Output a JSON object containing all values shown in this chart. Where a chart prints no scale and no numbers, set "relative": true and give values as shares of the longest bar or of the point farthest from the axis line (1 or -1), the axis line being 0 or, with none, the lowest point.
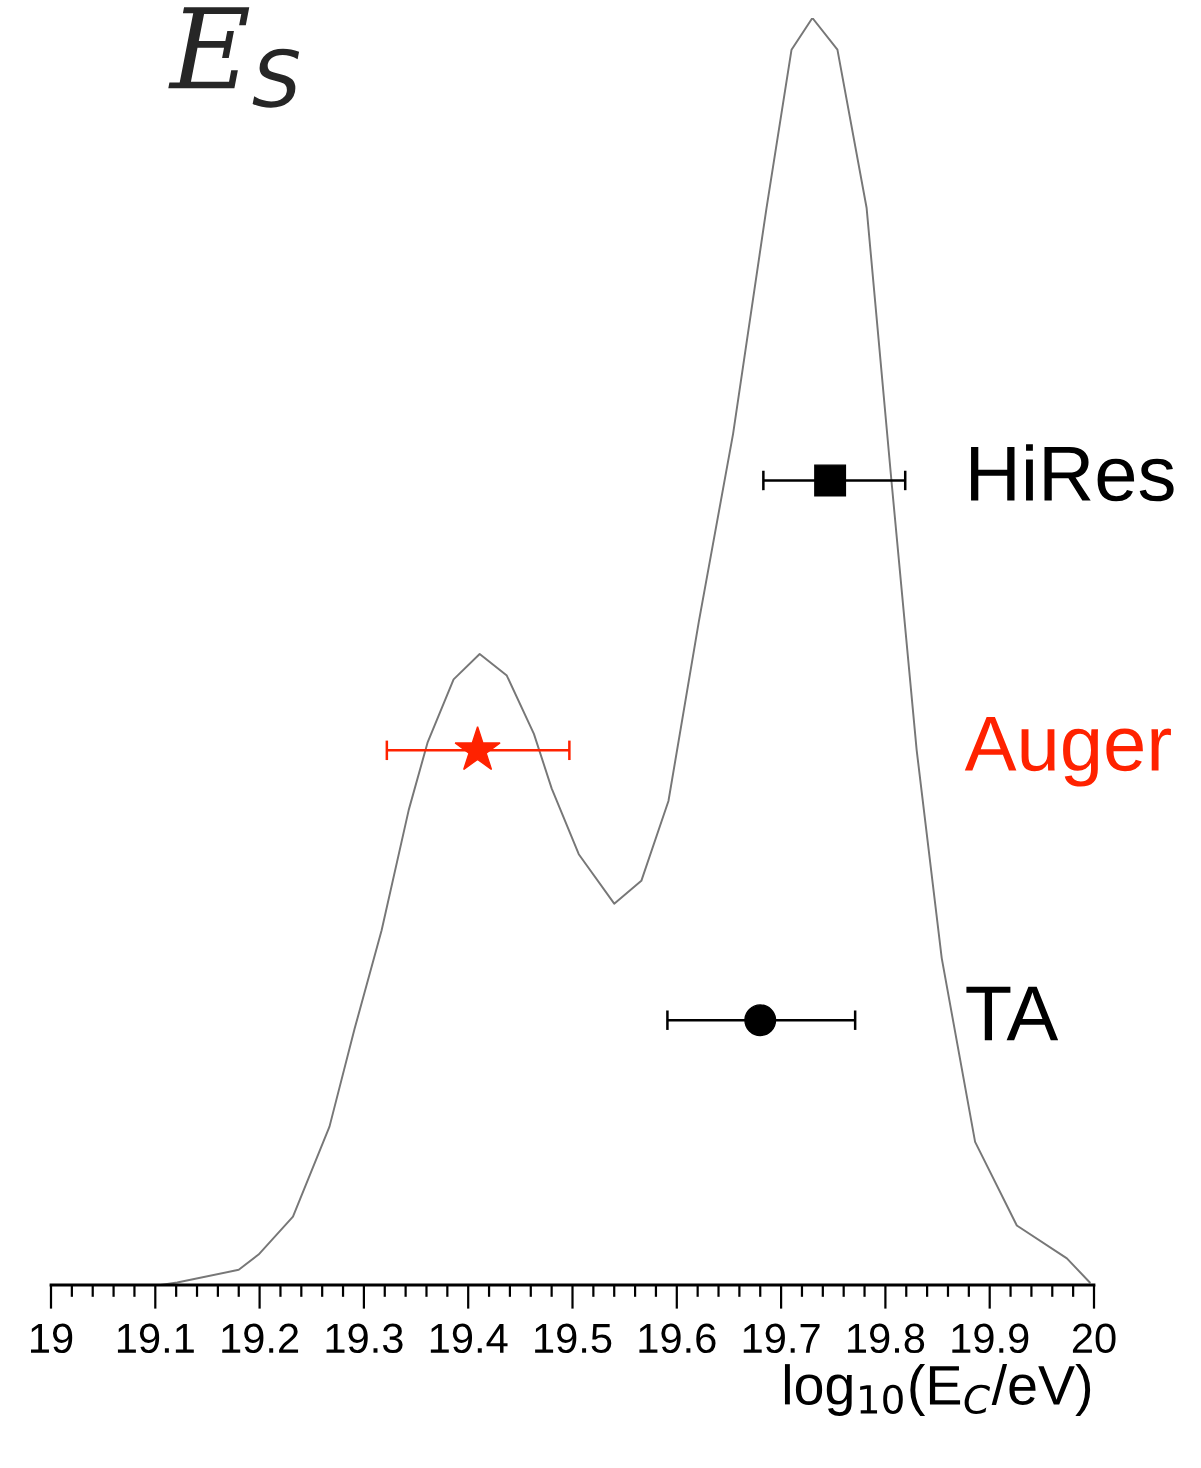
{
  "chart_data": {
    "type": "line",
    "title": "E$_{S}$",
    "xlabel": "log$_{10}$(E$_{C}$/eV)",
    "relative": true,
    "xlim": [
      19,
      20
    ],
    "xticks": [
      19,
      {
        "value": 19.02,
        "label": null
      },
      {
        "value": 19.04,
        "label": null
      },
      {
        "value": 19.06,
        "label": null
      },
      {
        "value": 19.08,
        "label": null
      },
      19.1,
      {
        "value": 19.12,
        "label": null
      },
      {
        "value": 19.14,
        "label": null
      },
      {
        "value": 19.16,
        "label": null
      },
      {
        "value": 19.18,
        "label": null
      },
      19.2,
      {
        "value": 19.22,
        "label": null
      },
      {
        "value": 19.24,
        "label": null
      },
      {
        "value": 19.26,
        "label": null
      },
      {
        "value": 19.28,
        "label": null
      },
      19.3,
      {
        "value": 19.32,
        "label": null
      },
      {
        "value": 19.34,
        "label": null
      },
      {
        "value": 19.36,
        "label": null
      },
      {
        "value": 19.38,
        "label": null
      },
      19.4,
      {
        "value": 19.42,
        "label": null
      },
      {
        "value": 19.44,
        "label": null
      },
      {
        "value": 19.46,
        "label": null
      },
      {
        "value": 19.48,
        "label": null
      },
      19.5,
      {
        "value": 19.52,
        "label": null
      },
      {
        "value": 19.54,
        "label": null
      },
      {
        "value": 19.56,
        "label": null
      },
      {
        "value": 19.58,
        "label": null
      },
      19.6,
      {
        "value": 19.62,
        "label": null
      },
      {
        "value": 19.64,
        "label": null
      },
      {
        "value": 19.66,
        "label": null
      },
      {
        "value": 19.68,
        "label": null
      },
      19.7,
      {
        "value": 19.72,
        "label": null
      },
      {
        "value": 19.74,
        "label": null
      },
      {
        "value": 19.76,
        "label": null
      },
      {
        "value": 19.78,
        "label": null
      },
      19.8,
      {
        "value": 19.82,
        "label": null
      },
      {
        "value": 19.84,
        "label": null
      },
      {
        "value": 19.86,
        "label": null
      },
      {
        "value": 19.88,
        "label": null
      },
      19.9,
      {
        "value": 19.92,
        "label": null
      },
      {
        "value": 19.94,
        "label": null
      },
      {
        "value": 19.96,
        "label": null
      },
      {
        "value": 19.98,
        "label": null
      },
      20
    ],
    "tick_labels": "x",
    "grid": false,
    "legend": false,
    "series": [
      {
        "color": "#777777",
        "marker": "none",
        "line_style": "solid",
        "x": [
          19.105,
          19.121,
          19.18,
          19.199,
          19.232,
          19.267,
          19.291,
          19.317,
          19.343,
          19.361,
          19.386,
          19.411,
          19.437,
          19.463,
          19.48,
          19.506,
          19.54,
          19.566,
          19.592,
          19.621,
          19.654,
          19.686,
          19.71,
          19.73,
          19.754,
          19.782,
          19.806,
          19.83,
          19.854,
          19.886,
          19.926,
          19.974,
          19.996
        ],
        "values": [
          0.0,
          0.002,
          0.012,
          0.024,
          0.054,
          0.125,
          0.202,
          0.28,
          0.375,
          0.428,
          0.478,
          0.498,
          0.481,
          0.435,
          0.392,
          0.34,
          0.301,
          0.319,
          0.382,
          0.523,
          0.672,
          0.85,
          0.975,
          1.0,
          0.975,
          0.85,
          0.633,
          0.422,
          0.258,
          0.113,
          0.047,
          0.021,
          0.002
        ]
      },
      {
        "type": "scatter",
        "name": "HiRes",
        "color": "#000000",
        "marker": "square",
        "x": [
          19.747
        ],
        "values": [
          0.635
        ],
        "xerrors": [
          [
            19.683,
            19.819
          ]
        ]
      },
      {
        "type": "scatter",
        "name": "Auger",
        "color": "#ff2200",
        "marker": "star",
        "x": [
          19.409
        ],
        "values": [
          0.422
        ],
        "xerrors": [
          [
            19.322,
            19.497
          ]
        ]
      },
      {
        "type": "scatter",
        "name": "TA",
        "color": "#000000",
        "marker": "circle",
        "x": [
          19.68
        ],
        "values": [
          0.209
        ],
        "xerrors": [
          [
            19.591,
            19.771
          ]
        ]
      }
    ]
  }
}
